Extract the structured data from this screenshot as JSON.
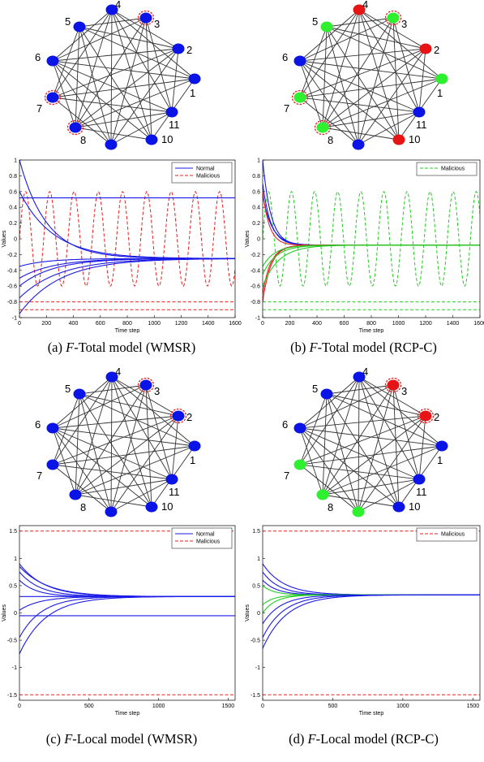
{
  "figure": {
    "panels": [
      {
        "id": "a",
        "caption": {
          "prefix": "(a) ",
          "model_letter": "F",
          "rest": "-Total model (WMSR)"
        },
        "graph": {
          "nodes": [
            {
              "label": "1",
              "color": "#0a14e6",
              "malicious_ring": false
            },
            {
              "label": "2",
              "color": "#0a14e6",
              "malicious_ring": false
            },
            {
              "label": "3",
              "color": "#0a14e6",
              "malicious_ring": true
            },
            {
              "label": "4",
              "color": "#0a14e6",
              "malicious_ring": false
            },
            {
              "label": "5",
              "color": "#0a14e6",
              "malicious_ring": false
            },
            {
              "label": "6",
              "color": "#0a14e6",
              "malicious_ring": false
            },
            {
              "label": "7",
              "color": "#0a14e6",
              "malicious_ring": true
            },
            {
              "label": "8",
              "color": "#0a14e6",
              "malicious_ring": true
            },
            {
              "label": "9",
              "color": "#0a14e6",
              "malicious_ring": false
            },
            {
              "label": "10",
              "color": "#0a14e6",
              "malicious_ring": false
            },
            {
              "label": "11",
              "color": "#0a14e6",
              "malicious_ring": false
            }
          ]
        },
        "chart_data": {
          "type": "line",
          "xlabel": "Time step",
          "ylabel": "Values",
          "xlim": [
            0,
            1600
          ],
          "ylim": [
            -1,
            1
          ],
          "xticks": [
            "0",
            "200",
            "400",
            "600",
            "800",
            "1000",
            "1200",
            "1400",
            "1600"
          ],
          "yticks": [
            "1",
            "0.8",
            "0.6",
            "0.4",
            "0.2",
            "0",
            "-0.2",
            "-0.4",
            "-0.6",
            "-0.8",
            "-1"
          ],
          "legend": [
            {
              "name": "Normal",
              "color": "#1a1ae6",
              "dash": false
            },
            {
              "name": "Malicious",
              "color": "#e62020",
              "dash": true
            }
          ],
          "normal_series": [
            {
              "start": 0.52,
              "end": 0.52,
              "tau": 1
            },
            {
              "start": 1.0,
              "end": -0.25,
              "tau": 200
            },
            {
              "start": 0.6,
              "end": -0.25,
              "tau": 250
            },
            {
              "start": -0.6,
              "end": -0.25,
              "tau": 250
            },
            {
              "start": -0.75,
              "end": -0.25,
              "tau": 300
            },
            {
              "start": -0.95,
              "end": -0.25,
              "tau": 300
            },
            {
              "start": -0.35,
              "end": -0.25,
              "tau": 200
            },
            {
              "start": -0.5,
              "end": -0.25,
              "tau": 250
            }
          ],
          "malicious_series": [
            {
              "kind": "constant",
              "value": -0.8
            },
            {
              "kind": "constant",
              "value": -0.9
            },
            {
              "kind": "sine",
              "center": 0.0,
              "amplitude": 0.6,
              "period": 180
            }
          ]
        }
      },
      {
        "id": "b",
        "caption": {
          "prefix": "(b) ",
          "model_letter": "F",
          "rest": "-Total model (RCP-C)"
        },
        "graph": {
          "nodes": [
            {
              "label": "1",
              "color": "#2ef02e",
              "malicious_ring": false
            },
            {
              "label": "2",
              "color": "#e61414",
              "malicious_ring": false
            },
            {
              "label": "3",
              "color": "#2ef02e",
              "malicious_ring": true
            },
            {
              "label": "4",
              "color": "#e61414",
              "malicious_ring": false
            },
            {
              "label": "5",
              "color": "#2ef02e",
              "malicious_ring": false
            },
            {
              "label": "6",
              "color": "#0a14e6",
              "malicious_ring": false
            },
            {
              "label": "7",
              "color": "#2ef02e",
              "malicious_ring": true
            },
            {
              "label": "8",
              "color": "#2ef02e",
              "malicious_ring": true
            },
            {
              "label": "9",
              "color": "#0a14e6",
              "malicious_ring": false
            },
            {
              "label": "10",
              "color": "#e61414",
              "malicious_ring": false
            },
            {
              "label": "11",
              "color": "#0a14e6",
              "malicious_ring": false
            }
          ]
        },
        "chart_data": {
          "type": "line",
          "xlabel": "Time step",
          "ylabel": "Values",
          "xlim": [
            0,
            1600
          ],
          "ylim": [
            -1,
            1
          ],
          "xticks": [
            "0",
            "200",
            "400",
            "600",
            "800",
            "1000",
            "1200",
            "1400",
            "1600"
          ],
          "yticks": [
            "1",
            "0.8",
            "0.6",
            "0.4",
            "0.2",
            "0",
            "-0.2",
            "-0.4",
            "-0.6",
            "-0.8",
            "-1"
          ],
          "legend": [
            {
              "name": "Malicious",
              "color": "#22cc22",
              "dash": true
            }
          ],
          "normal_series": [
            {
              "start": 1.0,
              "end": -0.08,
              "tau": 60,
              "color": "#1a1ae6"
            },
            {
              "start": 0.7,
              "end": -0.08,
              "tau": 60,
              "color": "#1a1ae6"
            },
            {
              "start": 0.55,
              "end": -0.08,
              "tau": 70,
              "color": "#1a1ae6"
            },
            {
              "start": 0.6,
              "end": -0.08,
              "tau": 50,
              "color": "#e62020"
            },
            {
              "start": -0.8,
              "end": -0.08,
              "tau": 60,
              "color": "#e62020"
            },
            {
              "start": -0.7,
              "end": -0.08,
              "tau": 60,
              "color": "#e62020"
            },
            {
              "start": -0.6,
              "end": -0.08,
              "tau": 120,
              "color": "#22cc22"
            },
            {
              "start": -0.45,
              "end": -0.08,
              "tau": 100,
              "color": "#22cc22"
            },
            {
              "start": -0.35,
              "end": -0.08,
              "tau": 90,
              "color": "#22cc22"
            }
          ],
          "malicious_series": [
            {
              "kind": "constant",
              "value": -0.8
            },
            {
              "kind": "constant",
              "value": -0.9
            },
            {
              "kind": "sine",
              "center": 0.0,
              "amplitude": 0.6,
              "period": 170
            }
          ]
        }
      },
      {
        "id": "c",
        "caption": {
          "prefix": "(c) ",
          "model_letter": "F",
          "rest": "-Local model (WMSR)"
        },
        "graph": {
          "nodes": [
            {
              "label": "1",
              "color": "#0a14e6",
              "malicious_ring": false
            },
            {
              "label": "2",
              "color": "#0a14e6",
              "malicious_ring": true
            },
            {
              "label": "3",
              "color": "#0a14e6",
              "malicious_ring": true
            },
            {
              "label": "4",
              "color": "#0a14e6",
              "malicious_ring": false
            },
            {
              "label": "5",
              "color": "#0a14e6",
              "malicious_ring": false
            },
            {
              "label": "6",
              "color": "#0a14e6",
              "malicious_ring": false
            },
            {
              "label": "7",
              "color": "#0a14e6",
              "malicious_ring": false
            },
            {
              "label": "8",
              "color": "#0a14e6",
              "malicious_ring": false
            },
            {
              "label": "9",
              "color": "#0a14e6",
              "malicious_ring": false
            },
            {
              "label": "10",
              "color": "#0a14e6",
              "malicious_ring": false
            },
            {
              "label": "11",
              "color": "#0a14e6",
              "malicious_ring": false
            }
          ]
        },
        "chart_data": {
          "type": "line",
          "xlabel": "Time step",
          "ylabel": "Values",
          "xlim": [
            0,
            1550
          ],
          "ylim": [
            -1.6,
            1.6
          ],
          "xticks": [
            "0",
            "500",
            "1000",
            "1500"
          ],
          "yticks": [
            "1.5",
            "1",
            "0.5",
            "0",
            "-0.5",
            "-1",
            "-1.5"
          ],
          "legend": [
            {
              "name": "Normal",
              "color": "#1a1ae6",
              "dash": false
            },
            {
              "name": "Malicious",
              "color": "#e62020",
              "dash": true
            }
          ],
          "normal_series": [
            {
              "start": 0.9,
              "end": 0.3,
              "tau": 180
            },
            {
              "start": 0.85,
              "end": 0.3,
              "tau": 200
            },
            {
              "start": 0.75,
              "end": 0.3,
              "tau": 150
            },
            {
              "start": 0.6,
              "end": 0.3,
              "tau": 120
            },
            {
              "start": 0.3,
              "end": 0.3,
              "tau": 1
            },
            {
              "start": 0.05,
              "end": 0.3,
              "tau": 150
            },
            {
              "start": -0.05,
              "end": -0.05,
              "tau": 1
            },
            {
              "start": -0.45,
              "end": 0.3,
              "tau": 160
            },
            {
              "start": -0.75,
              "end": 0.3,
              "tau": 190
            }
          ],
          "malicious_series": [
            {
              "kind": "constant",
              "value": 1.5
            },
            {
              "kind": "constant",
              "value": -1.5
            }
          ]
        }
      },
      {
        "id": "d",
        "caption": {
          "prefix": "(d) ",
          "model_letter": "F",
          "rest": "-Local model (RCP-C)"
        },
        "graph": {
          "nodes": [
            {
              "label": "1",
              "color": "#0a14e6",
              "malicious_ring": false
            },
            {
              "label": "2",
              "color": "#e61414",
              "malicious_ring": true
            },
            {
              "label": "3",
              "color": "#e61414",
              "malicious_ring": true
            },
            {
              "label": "4",
              "color": "#0a14e6",
              "malicious_ring": false
            },
            {
              "label": "5",
              "color": "#0a14e6",
              "malicious_ring": false
            },
            {
              "label": "6",
              "color": "#0a14e6",
              "malicious_ring": false
            },
            {
              "label": "7",
              "color": "#2ef02e",
              "malicious_ring": false
            },
            {
              "label": "8",
              "color": "#2ef02e",
              "malicious_ring": false
            },
            {
              "label": "9",
              "color": "#2ef02e",
              "malicious_ring": false
            },
            {
              "label": "10",
              "color": "#0a14e6",
              "malicious_ring": false
            },
            {
              "label": "11",
              "color": "#0a14e6",
              "malicious_ring": false
            }
          ]
        },
        "chart_data": {
          "type": "line",
          "xlabel": "Time step",
          "ylabel": "Values",
          "xlim": [
            0,
            1550
          ],
          "ylim": [
            -1.6,
            1.6
          ],
          "xticks": [
            "0",
            "500",
            "1000",
            "1500"
          ],
          "yticks": [
            "1.5",
            "1",
            "0.5",
            "0",
            "-0.5",
            "-1",
            "-1.5"
          ],
          "legend": [
            {
              "name": "Malicious",
              "color": "#e62020",
              "dash": true
            }
          ],
          "normal_series": [
            {
              "start": 0.9,
              "end": 0.33,
              "tau": 150,
              "color": "#1a1ae6"
            },
            {
              "start": 0.75,
              "end": 0.33,
              "tau": 120,
              "color": "#1a1ae6"
            },
            {
              "start": 0.6,
              "end": 0.33,
              "tau": 100,
              "color": "#1a1ae6"
            },
            {
              "start": 0.5,
              "end": 0.33,
              "tau": 80,
              "color": "#22cc22"
            },
            {
              "start": 0.15,
              "end": 0.33,
              "tau": 80,
              "color": "#22cc22"
            },
            {
              "start": 0.0,
              "end": 0.33,
              "tau": 90,
              "color": "#22cc22"
            },
            {
              "start": -0.2,
              "end": 0.33,
              "tau": 130,
              "color": "#1a1ae6"
            },
            {
              "start": -0.45,
              "end": 0.33,
              "tau": 150,
              "color": "#1a1ae6"
            },
            {
              "start": -0.65,
              "end": 0.33,
              "tau": 170,
              "color": "#1a1ae6"
            }
          ],
          "malicious_series": [
            {
              "kind": "constant",
              "value": 1.5
            },
            {
              "kind": "constant",
              "value": -1.5
            }
          ]
        }
      }
    ]
  }
}
